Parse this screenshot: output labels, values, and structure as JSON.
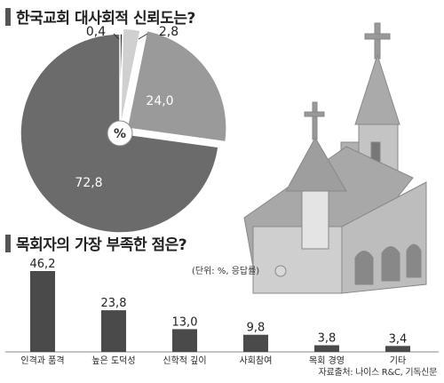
{
  "chart_data": [
    {
      "type": "pie",
      "title": "한국교회 대사회적 신뢰도는?",
      "center_label": "%",
      "slices": [
        {
          "label": "0,4",
          "value": 0.4,
          "color": "#1a1a1a"
        },
        {
          "label": "2,8",
          "value": 2.8,
          "color": "#d0d0d0"
        },
        {
          "label": "24,0",
          "value": 24.0,
          "color": "#9a9a9a"
        },
        {
          "label": "72,8",
          "value": 72.8,
          "color": "#6b6b6b"
        }
      ]
    },
    {
      "type": "bar",
      "title": "목회자의 가장 부족한 점은?",
      "unit_note": "(단위: %, 응답률)",
      "categories": [
        "인격과 품격",
        "높은 도덕성",
        "신학적 깊이",
        "사회참여",
        "목회 경영",
        "기타"
      ],
      "values": [
        46.2,
        23.8,
        13.0,
        9.8,
        3.8,
        3.4
      ],
      "value_labels": [
        "46,2",
        "23,8",
        "13,0",
        "9,8",
        "3,8",
        "3,4"
      ],
      "ylim": [
        0,
        50
      ],
      "bar_color": "#4a4a4a"
    }
  ],
  "source": "자료출처: 나이스 R&C, 기독신문",
  "illustration": {
    "name": "church-illustration"
  }
}
